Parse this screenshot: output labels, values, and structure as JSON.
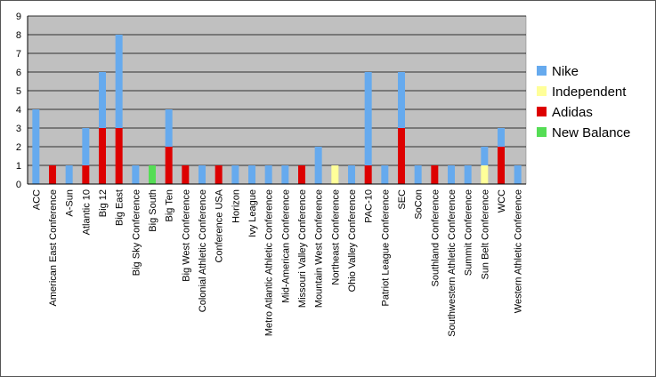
{
  "chart_data": {
    "type": "bar",
    "stacked": true,
    "categories": [
      "ACC",
      "American East Conference",
      "A-Sun",
      "Atlantic 10",
      "Big 12",
      "Big East",
      "Big Sky Conference",
      "Big South",
      "Big Ten",
      "Big West Conference",
      "Colonial Athletic Conference",
      "Conference USA",
      "Horizon",
      "Ivy League",
      "Metro Atlantic Athletic Conference",
      "Mid-American Conference",
      "Missouri Valley Conference",
      "Mountain West Conference",
      "Northeast Conference",
      "Ohio Valley Conference",
      "PAC-10",
      "Patriot League Conference",
      "SEC",
      "SoCon",
      "Southland Conference",
      "Southwestern Athletic Conference",
      "Summit Conference",
      "Sun Belt Conference",
      "WCC",
      "Western Athletic Conference"
    ],
    "series": [
      {
        "name": "New Balance",
        "color": "#55dd55",
        "values": [
          0,
          0,
          0,
          0,
          0,
          0,
          0,
          1,
          0,
          0,
          0,
          0,
          0,
          0,
          0,
          0,
          0,
          0,
          0,
          0,
          0,
          0,
          0,
          0,
          0,
          0,
          0,
          0,
          0,
          0
        ]
      },
      {
        "name": "Adidas",
        "color": "#dd0000",
        "values": [
          0,
          1,
          0,
          1,
          3,
          3,
          0,
          0,
          2,
          1,
          0,
          1,
          0,
          0,
          0,
          0,
          1,
          0,
          0,
          0,
          1,
          0,
          3,
          0,
          1,
          0,
          0,
          0,
          2,
          0
        ]
      },
      {
        "name": "Independent",
        "color": "#ffff99",
        "values": [
          0,
          0,
          0,
          0,
          0,
          0,
          0,
          0,
          0,
          0,
          0,
          0,
          0,
          0,
          0,
          0,
          0,
          0,
          1,
          0,
          0,
          0,
          0,
          0,
          0,
          0,
          0,
          1,
          0,
          0
        ]
      },
      {
        "name": "Nike",
        "color": "#66aaee",
        "values": [
          4,
          0,
          1,
          2,
          3,
          5,
          1,
          0,
          2,
          0,
          1,
          0,
          1,
          1,
          1,
          1,
          0,
          2,
          0,
          1,
          5,
          1,
          3,
          1,
          0,
          1,
          1,
          1,
          1,
          1
        ]
      }
    ],
    "legend_order": [
      "Nike",
      "Independent",
      "Adidas",
      "New Balance"
    ],
    "legend_position": "right",
    "ylim": [
      0,
      9
    ],
    "yticks": [
      "0",
      "1",
      "2",
      "3",
      "4",
      "5",
      "6",
      "7",
      "8",
      "9"
    ],
    "grid": true,
    "plot_background": "#c0c0c0"
  }
}
